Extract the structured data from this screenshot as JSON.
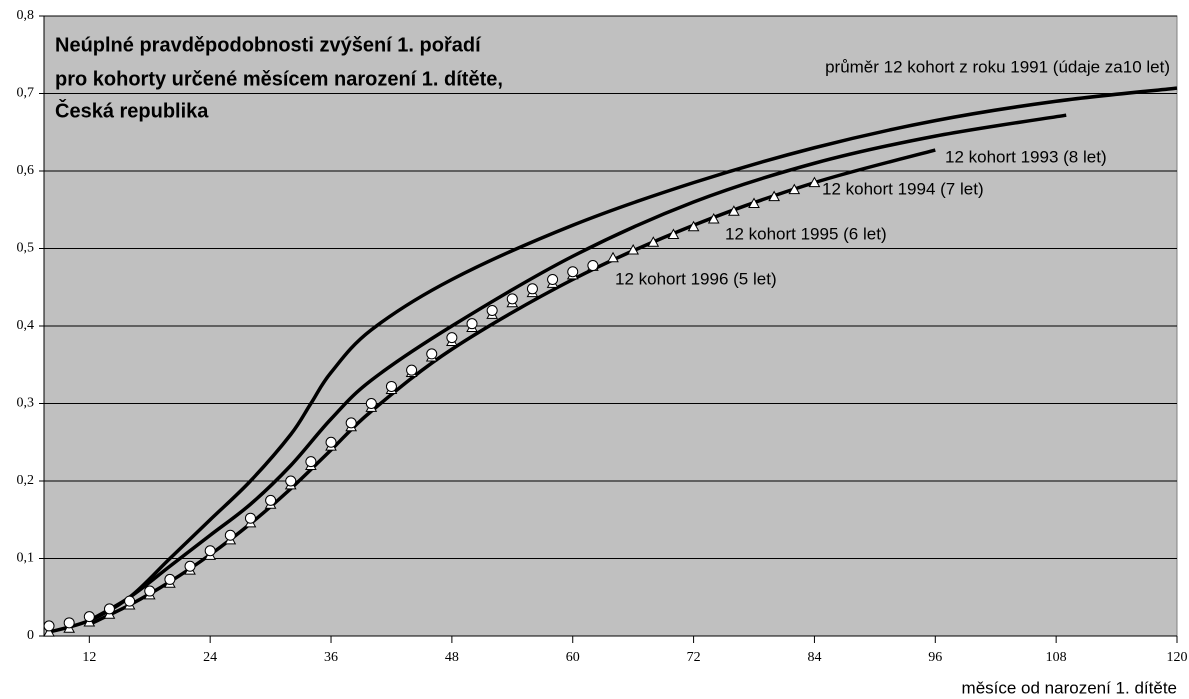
{
  "chart_data": {
    "type": "line",
    "title": [
      "Neúplné pravděpodobnosti zvýšení 1. pořadí",
      "pro kohorty určené měsícem narození 1. dítěte,",
      "Česká republika"
    ],
    "x_label": "měsíce od narození 1. dítěte",
    "xlim": [
      7.5,
      120
    ],
    "xticks": [
      12,
      24,
      36,
      48,
      60,
      72,
      84,
      96,
      108,
      120
    ],
    "ylim": [
      0,
      0.8
    ],
    "yticks": [
      0,
      {
        "value": 0.1,
        "label": "0,1"
      },
      {
        "value": 0.2,
        "label": "0,2"
      },
      {
        "value": 0.3,
        "label": "0,3"
      },
      {
        "value": 0.4,
        "label": "0,4"
      },
      {
        "value": 0.5,
        "label": "0,5"
      },
      {
        "value": 0.6,
        "label": "0,6"
      },
      {
        "value": 0.7,
        "label": "0,7"
      },
      {
        "value": 0.8,
        "label": "0,8"
      }
    ],
    "grid": true,
    "series": [
      {
        "name": "průměr 12 kohort z roku 1991 (údaje za10 let)",
        "color": "#000000",
        "marker": "none",
        "x": [
          8,
          12,
          16,
          20,
          24,
          28,
          32,
          34,
          36,
          40,
          48,
          60,
          72,
          84,
          96,
          108,
          120
        ],
        "values": [
          0.005,
          0.02,
          0.05,
          0.1,
          0.15,
          0.2,
          0.26,
          0.3,
          0.34,
          0.395,
          0.46,
          0.53,
          0.585,
          0.63,
          0.665,
          0.69,
          0.707
        ]
      },
      {
        "name": "12 kohort 1993 (8 let)",
        "color": "#000000",
        "marker": "none",
        "x": [
          12,
          16,
          20,
          24,
          28,
          32,
          36,
          40,
          48,
          60,
          72,
          84,
          96,
          109
        ],
        "values": [
          0.02,
          0.05,
          0.09,
          0.13,
          0.17,
          0.22,
          0.28,
          0.33,
          0.4,
          0.49,
          0.56,
          0.61,
          0.645,
          0.672
        ]
      },
      {
        "name": "12 kohort 1994 (7 let)",
        "color": "#000000",
        "marker": "none",
        "x": [
          12,
          16,
          20,
          24,
          28,
          32,
          36,
          40,
          48,
          60,
          72,
          84,
          96
        ],
        "values": [
          0.015,
          0.04,
          0.07,
          0.105,
          0.145,
          0.19,
          0.24,
          0.29,
          0.37,
          0.46,
          0.53,
          0.585,
          0.627
        ]
      },
      {
        "name": "12 kohort 1995 (6 let)",
        "color": "#000000",
        "marker": "triangle",
        "x": [
          8,
          10,
          12,
          14,
          16,
          18,
          20,
          22,
          24,
          26,
          28,
          30,
          32,
          34,
          36,
          38,
          40,
          42,
          44,
          46,
          48,
          50,
          52,
          54,
          56,
          58,
          60,
          62,
          64,
          66,
          68,
          70,
          72,
          74,
          76,
          78,
          80,
          82,
          84
        ],
        "values": [
          0.005,
          0.01,
          0.018,
          0.028,
          0.04,
          0.053,
          0.068,
          0.085,
          0.104,
          0.124,
          0.146,
          0.17,
          0.195,
          0.22,
          0.245,
          0.27,
          0.295,
          0.318,
          0.34,
          0.36,
          0.38,
          0.398,
          0.415,
          0.43,
          0.443,
          0.455,
          0.466,
          0.477,
          0.488,
          0.498,
          0.508,
          0.518,
          0.528,
          0.538,
          0.548,
          0.558,
          0.567,
          0.576,
          0.585
        ]
      },
      {
        "name": "12 kohort 1996 (5 let)",
        "color": "#000000",
        "marker": "circle",
        "x": [
          8,
          10,
          12,
          14,
          16,
          18,
          20,
          22,
          24,
          26,
          28,
          30,
          32,
          34,
          36,
          38,
          40,
          42,
          44,
          46,
          48,
          50,
          52,
          54,
          56,
          58,
          60,
          62
        ],
        "values": [
          0.013,
          0.017,
          0.025,
          0.035,
          0.045,
          0.058,
          0.073,
          0.09,
          0.11,
          0.13,
          0.152,
          0.175,
          0.2,
          0.225,
          0.25,
          0.275,
          0.3,
          0.322,
          0.343,
          0.364,
          0.385,
          0.403,
          0.42,
          0.435,
          0.448,
          0.46,
          0.47,
          0.478
        ]
      }
    ]
  }
}
